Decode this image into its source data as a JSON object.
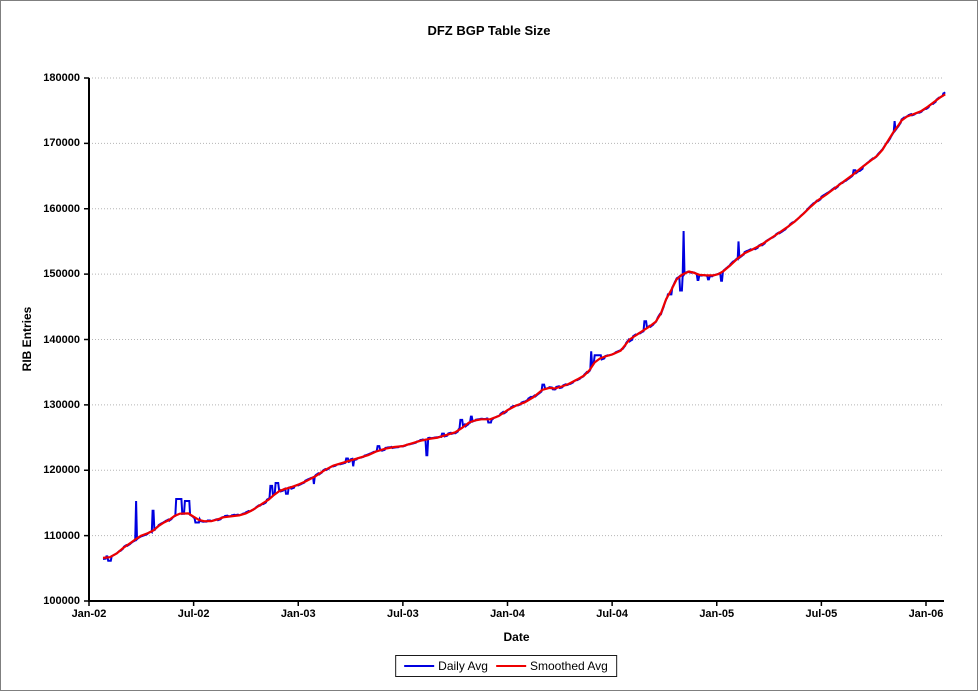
{
  "window": {
    "border_color": "#7f7f7f",
    "background": "#ffffff"
  },
  "chart_data": {
    "type": "line",
    "title": "DFZ BGP Table Size",
    "xlabel": "Date",
    "ylabel": "RIB Entries",
    "ylim": [
      100000,
      180000
    ],
    "ytick_step": 10000,
    "ytick_labels": [
      "100000",
      "110000",
      "120000",
      "130000",
      "140000",
      "150000",
      "160000",
      "170000",
      "180000"
    ],
    "xtick_labels": [
      "Jan-02",
      "Jul-02",
      "Jan-03",
      "Jul-03",
      "Jan-04",
      "Jul-04",
      "Jan-05",
      "Jul-05",
      "Jan-06"
    ],
    "xtick_months": [
      0,
      6,
      12,
      18,
      24,
      30,
      36,
      42,
      48
    ],
    "x_axis_unit": "months since Jan-2002",
    "xlim": [
      0,
      49.5
    ],
    "grid": "horizontal dotted gray",
    "legend": {
      "position": "bottom-center",
      "entries": [
        {
          "label": "Daily Avg",
          "color": "#0000e0"
        },
        {
          "label": "Smoothed Avg",
          "color": "#ee0000"
        }
      ]
    },
    "series": [
      {
        "name": "Smoothed Avg",
        "color": "#ee0000",
        "points": [
          [
            0.8,
            106600
          ],
          [
            1.2,
            106700
          ],
          [
            1.6,
            107300
          ],
          [
            2.0,
            108200
          ],
          [
            2.4,
            108900
          ],
          [
            2.7,
            109500
          ],
          [
            3.0,
            110000
          ],
          [
            3.4,
            110400
          ],
          [
            3.7,
            110800
          ],
          [
            4.0,
            111500
          ],
          [
            4.3,
            112000
          ],
          [
            4.6,
            112400
          ],
          [
            4.9,
            113000
          ],
          [
            5.2,
            113350
          ],
          [
            5.7,
            113400
          ],
          [
            6.0,
            112900
          ],
          [
            6.3,
            112400
          ],
          [
            6.6,
            112200
          ],
          [
            7.0,
            112200
          ],
          [
            7.4,
            112500
          ],
          [
            7.7,
            112800
          ],
          [
            8.0,
            112900
          ],
          [
            8.3,
            113000
          ],
          [
            8.6,
            113100
          ],
          [
            9.0,
            113400
          ],
          [
            9.3,
            113800
          ],
          [
            9.6,
            114300
          ],
          [
            10.0,
            115000
          ],
          [
            10.3,
            115500
          ],
          [
            10.6,
            116200
          ],
          [
            10.9,
            116800
          ],
          [
            11.2,
            117100
          ],
          [
            11.6,
            117400
          ],
          [
            12.0,
            117800
          ],
          [
            12.5,
            118400
          ],
          [
            13.0,
            119100
          ],
          [
            13.5,
            120000
          ],
          [
            14.0,
            120700
          ],
          [
            14.5,
            121100
          ],
          [
            15.0,
            121500
          ],
          [
            15.5,
            121900
          ],
          [
            16.0,
            122300
          ],
          [
            16.5,
            122900
          ],
          [
            17.0,
            123300
          ],
          [
            17.5,
            123550
          ],
          [
            18.0,
            123700
          ],
          [
            18.5,
            124100
          ],
          [
            19.0,
            124500
          ],
          [
            19.5,
            124800
          ],
          [
            20.0,
            125000
          ],
          [
            20.5,
            125400
          ],
          [
            21.0,
            125800
          ],
          [
            21.4,
            126500
          ],
          [
            21.8,
            127300
          ],
          [
            22.1,
            127600
          ],
          [
            22.5,
            127800
          ],
          [
            23.0,
            127800
          ],
          [
            23.5,
            128300
          ],
          [
            24.0,
            129200
          ],
          [
            24.5,
            129900
          ],
          [
            25.0,
            130400
          ],
          [
            25.5,
            131200
          ],
          [
            26.0,
            132300
          ],
          [
            26.4,
            132600
          ],
          [
            26.7,
            132500
          ],
          [
            27.1,
            132800
          ],
          [
            27.5,
            133200
          ],
          [
            28.0,
            133900
          ],
          [
            28.4,
            134500
          ],
          [
            28.7,
            135300
          ],
          [
            29.0,
            136500
          ],
          [
            29.3,
            137100
          ],
          [
            29.6,
            137400
          ],
          [
            30.0,
            137700
          ],
          [
            30.5,
            138300
          ],
          [
            31.0,
            140000
          ],
          [
            31.4,
            140700
          ],
          [
            31.8,
            141400
          ],
          [
            32.2,
            142100
          ],
          [
            32.5,
            142700
          ],
          [
            32.8,
            144000
          ],
          [
            33.1,
            146200
          ],
          [
            33.4,
            147600
          ],
          [
            33.7,
            149200
          ],
          [
            34.0,
            149900
          ],
          [
            34.4,
            150400
          ],
          [
            34.7,
            150200
          ],
          [
            35.0,
            149900
          ],
          [
            35.4,
            149800
          ],
          [
            35.8,
            149800
          ],
          [
            36.1,
            150000
          ],
          [
            36.4,
            150500
          ],
          [
            36.8,
            151400
          ],
          [
            37.2,
            152400
          ],
          [
            37.6,
            153200
          ],
          [
            38.0,
            153700
          ],
          [
            38.5,
            154400
          ],
          [
            39.0,
            155300
          ],
          [
            39.5,
            156200
          ],
          [
            40.0,
            157100
          ],
          [
            40.5,
            158100
          ],
          [
            41.0,
            159300
          ],
          [
            41.3,
            160100
          ],
          [
            41.8,
            161300
          ],
          [
            42.3,
            162200
          ],
          [
            42.8,
            163200
          ],
          [
            43.3,
            164200
          ],
          [
            43.8,
            165200
          ],
          [
            44.3,
            166300
          ],
          [
            44.8,
            167300
          ],
          [
            45.2,
            168100
          ],
          [
            45.5,
            169000
          ],
          [
            45.8,
            170300
          ],
          [
            46.1,
            171600
          ],
          [
            46.4,
            172700
          ],
          [
            46.6,
            173500
          ],
          [
            46.9,
            174100
          ],
          [
            47.3,
            174500
          ],
          [
            47.7,
            174900
          ],
          [
            48.1,
            175600
          ],
          [
            48.5,
            176400
          ],
          [
            48.8,
            177000
          ],
          [
            49.1,
            177500
          ]
        ]
      },
      {
        "name": "Daily Avg",
        "color": "#0000e0",
        "base": "tracks Smoothed Avg with small daily noise",
        "noise_amplitude": 250,
        "deviations": [
          [
            1.2,
            106150,
            0.2
          ],
          [
            2.7,
            115300,
            0.07
          ],
          [
            3.67,
            113800,
            0.09
          ],
          [
            5.15,
            115600,
            0.35
          ],
          [
            5.62,
            115300,
            0.3
          ],
          [
            6.2,
            112000,
            0.25
          ],
          [
            10.45,
            117600,
            0.15
          ],
          [
            10.78,
            118050,
            0.22
          ],
          [
            11.35,
            116400,
            0.18
          ],
          [
            12.9,
            117900,
            0.08
          ],
          [
            14.8,
            121800,
            0.15
          ],
          [
            15.15,
            120600,
            0.08
          ],
          [
            16.6,
            123700,
            0.15
          ],
          [
            19.4,
            122300,
            0.1
          ],
          [
            20.3,
            125600,
            0.15
          ],
          [
            21.35,
            127700,
            0.15
          ],
          [
            21.92,
            128200,
            0.12
          ],
          [
            23.0,
            127300,
            0.2
          ],
          [
            26.05,
            133100,
            0.15
          ],
          [
            28.8,
            138200,
            0.08
          ],
          [
            29.2,
            137600,
            0.4
          ],
          [
            31.9,
            142800,
            0.18
          ],
          [
            33.3,
            146900,
            0.25
          ],
          [
            33.95,
            147500,
            0.15
          ],
          [
            34.1,
            156600,
            0.07
          ],
          [
            34.95,
            149100,
            0.1
          ],
          [
            35.55,
            149200,
            0.1
          ],
          [
            36.3,
            149000,
            0.1
          ],
          [
            37.25,
            155000,
            0.07
          ],
          [
            43.9,
            165900,
            0.15
          ],
          [
            46.2,
            173400,
            0.07
          ],
          [
            49.05,
            177700,
            0.06
          ]
        ]
      }
    ]
  }
}
